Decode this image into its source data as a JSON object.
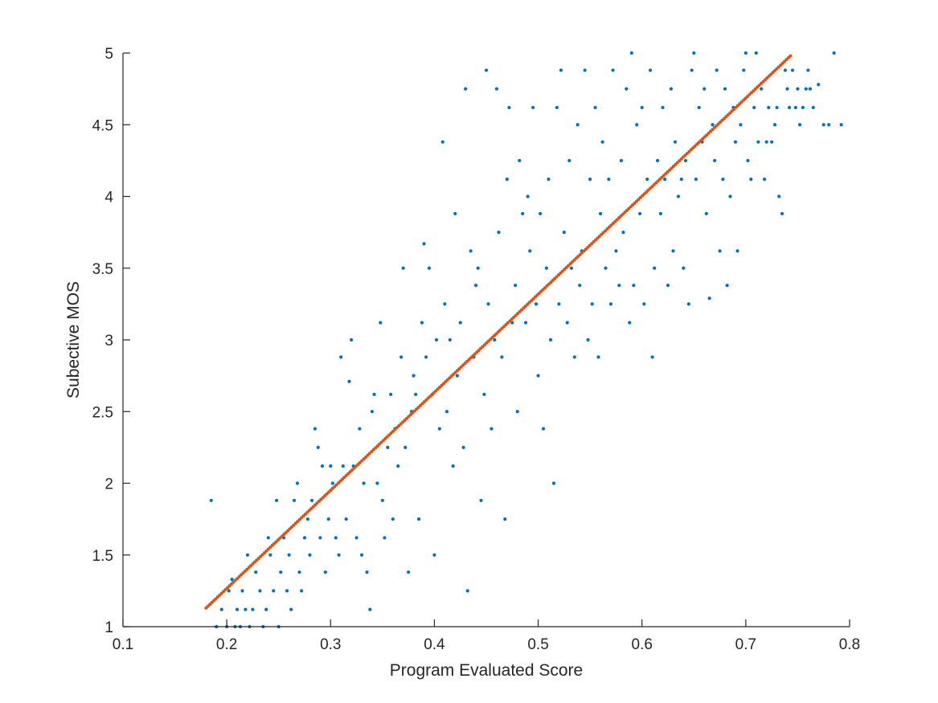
{
  "chart_data": {
    "type": "scatter",
    "title": "",
    "xlabel": "Program Evaluated Score",
    "ylabel": "Subective MOS",
    "xlim": [
      0.1,
      0.8
    ],
    "ylim": [
      1,
      5
    ],
    "grid": false,
    "x_ticks": [
      0.1,
      0.2,
      0.3,
      0.4,
      0.5,
      0.6,
      0.7,
      0.8
    ],
    "x_tick_labels": [
      "0.1",
      "0.2",
      "0.3",
      "0.4",
      "0.5",
      "0.6",
      "0.7",
      "0.8"
    ],
    "y_ticks": [
      1,
      1.5,
      2,
      2.5,
      3,
      3.5,
      4,
      4.5,
      5
    ],
    "y_tick_labels": [
      "1",
      "1.5",
      "2",
      "2.5",
      "3",
      "3.5",
      "4",
      "4.5",
      "5"
    ],
    "colors": {
      "observed": "#0072BD",
      "fit": "#D95319",
      "axis": "#262626"
    },
    "series": [
      {
        "marker": "dot",
        "points": [
          [
            0.185,
            1.88
          ],
          [
            0.19,
            1.0
          ],
          [
            0.195,
            1.12
          ],
          [
            0.2,
            1.0
          ],
          [
            0.202,
            1.25
          ],
          [
            0.205,
            1.33
          ],
          [
            0.208,
            1.0
          ],
          [
            0.21,
            1.12
          ],
          [
            0.213,
            1.0
          ],
          [
            0.215,
            1.25
          ],
          [
            0.218,
            1.12
          ],
          [
            0.22,
            1.5
          ],
          [
            0.222,
            1.0
          ],
          [
            0.225,
            1.12
          ],
          [
            0.228,
            1.38
          ],
          [
            0.232,
            1.25
          ],
          [
            0.235,
            1.0
          ],
          [
            0.238,
            1.12
          ],
          [
            0.24,
            1.62
          ],
          [
            0.242,
            1.5
          ],
          [
            0.245,
            1.25
          ],
          [
            0.248,
            1.88
          ],
          [
            0.25,
            1.0
          ],
          [
            0.252,
            1.38
          ],
          [
            0.255,
            1.62
          ],
          [
            0.258,
            1.25
          ],
          [
            0.26,
            1.5
          ],
          [
            0.262,
            1.12
          ],
          [
            0.265,
            1.88
          ],
          [
            0.268,
            2.0
          ],
          [
            0.27,
            1.38
          ],
          [
            0.272,
            1.25
          ],
          [
            0.275,
            1.62
          ],
          [
            0.278,
            1.75
          ],
          [
            0.28,
            1.5
          ],
          [
            0.282,
            1.88
          ],
          [
            0.285,
            2.38
          ],
          [
            0.288,
            2.25
          ],
          [
            0.29,
            1.62
          ],
          [
            0.292,
            2.12
          ],
          [
            0.295,
            1.38
          ],
          [
            0.298,
            1.75
          ],
          [
            0.3,
            2.12
          ],
          [
            0.302,
            2.0
          ],
          [
            0.305,
            1.62
          ],
          [
            0.308,
            1.5
          ],
          [
            0.31,
            2.88
          ],
          [
            0.312,
            2.12
          ],
          [
            0.315,
            1.75
          ],
          [
            0.318,
            2.71
          ],
          [
            0.32,
            3.0
          ],
          [
            0.322,
            2.12
          ],
          [
            0.325,
            1.62
          ],
          [
            0.328,
            2.38
          ],
          [
            0.33,
            1.5
          ],
          [
            0.332,
            2.0
          ],
          [
            0.335,
            1.38
          ],
          [
            0.338,
            1.12
          ],
          [
            0.34,
            2.5
          ],
          [
            0.342,
            2.62
          ],
          [
            0.345,
            2.0
          ],
          [
            0.348,
            3.12
          ],
          [
            0.35,
            1.88
          ],
          [
            0.352,
            1.62
          ],
          [
            0.355,
            2.25
          ],
          [
            0.358,
            2.62
          ],
          [
            0.36,
            1.75
          ],
          [
            0.362,
            2.38
          ],
          [
            0.365,
            2.12
          ],
          [
            0.368,
            2.88
          ],
          [
            0.37,
            3.5
          ],
          [
            0.372,
            2.25
          ],
          [
            0.375,
            1.38
          ],
          [
            0.378,
            2.5
          ],
          [
            0.38,
            2.75
          ],
          [
            0.382,
            2.62
          ],
          [
            0.385,
            1.75
          ],
          [
            0.388,
            3.12
          ],
          [
            0.39,
            3.67
          ],
          [
            0.392,
            2.88
          ],
          [
            0.395,
            3.5
          ],
          [
            0.398,
            2.62
          ],
          [
            0.4,
            1.5
          ],
          [
            0.402,
            3.0
          ],
          [
            0.405,
            2.38
          ],
          [
            0.408,
            4.38
          ],
          [
            0.41,
            3.25
          ],
          [
            0.412,
            2.5
          ],
          [
            0.415,
            3.0
          ],
          [
            0.418,
            2.12
          ],
          [
            0.42,
            3.88
          ],
          [
            0.422,
            2.75
          ],
          [
            0.425,
            3.12
          ],
          [
            0.428,
            2.25
          ],
          [
            0.43,
            4.75
          ],
          [
            0.432,
            1.25
          ],
          [
            0.435,
            3.62
          ],
          [
            0.438,
            2.88
          ],
          [
            0.44,
            3.38
          ],
          [
            0.442,
            3.5
          ],
          [
            0.445,
            1.88
          ],
          [
            0.448,
            2.62
          ],
          [
            0.45,
            4.88
          ],
          [
            0.452,
            3.25
          ],
          [
            0.455,
            2.38
          ],
          [
            0.458,
            3.0
          ],
          [
            0.46,
            4.75
          ],
          [
            0.462,
            3.75
          ],
          [
            0.465,
            2.88
          ],
          [
            0.468,
            1.75
          ],
          [
            0.47,
            4.12
          ],
          [
            0.472,
            4.62
          ],
          [
            0.475,
            3.12
          ],
          [
            0.478,
            3.38
          ],
          [
            0.48,
            2.5
          ],
          [
            0.482,
            4.25
          ],
          [
            0.485,
            3.88
          ],
          [
            0.488,
            3.12
          ],
          [
            0.49,
            4.0
          ],
          [
            0.492,
            3.62
          ],
          [
            0.495,
            4.62
          ],
          [
            0.498,
            3.25
          ],
          [
            0.5,
            2.75
          ],
          [
            0.502,
            3.88
          ],
          [
            0.505,
            2.38
          ],
          [
            0.508,
            3.5
          ],
          [
            0.51,
            4.12
          ],
          [
            0.512,
            3.0
          ],
          [
            0.515,
            2.0
          ],
          [
            0.518,
            4.62
          ],
          [
            0.52,
            3.25
          ],
          [
            0.522,
            4.88
          ],
          [
            0.525,
            3.75
          ],
          [
            0.528,
            3.12
          ],
          [
            0.53,
            4.25
          ],
          [
            0.532,
            3.5
          ],
          [
            0.535,
            2.88
          ],
          [
            0.538,
            4.5
          ],
          [
            0.54,
            3.38
          ],
          [
            0.542,
            3.62
          ],
          [
            0.545,
            4.88
          ],
          [
            0.548,
            3.0
          ],
          [
            0.55,
            4.12
          ],
          [
            0.552,
            3.25
          ],
          [
            0.555,
            4.62
          ],
          [
            0.558,
            2.88
          ],
          [
            0.56,
            3.88
          ],
          [
            0.562,
            4.38
          ],
          [
            0.565,
            3.5
          ],
          [
            0.568,
            4.12
          ],
          [
            0.57,
            3.25
          ],
          [
            0.572,
            4.88
          ],
          [
            0.575,
            3.62
          ],
          [
            0.578,
            3.38
          ],
          [
            0.58,
            4.25
          ],
          [
            0.582,
            3.75
          ],
          [
            0.585,
            4.75
          ],
          [
            0.588,
            3.12
          ],
          [
            0.59,
            5.0
          ],
          [
            0.592,
            3.38
          ],
          [
            0.595,
            4.5
          ],
          [
            0.598,
            3.88
          ],
          [
            0.6,
            4.62
          ],
          [
            0.602,
            3.25
          ],
          [
            0.605,
            4.12
          ],
          [
            0.608,
            4.88
          ],
          [
            0.61,
            2.88
          ],
          [
            0.612,
            3.5
          ],
          [
            0.615,
            4.25
          ],
          [
            0.618,
            3.88
          ],
          [
            0.62,
            4.62
          ],
          [
            0.622,
            4.12
          ],
          [
            0.625,
            3.38
          ],
          [
            0.628,
            4.75
          ],
          [
            0.63,
            3.62
          ],
          [
            0.632,
            4.38
          ],
          [
            0.635,
            4.0
          ],
          [
            0.638,
            4.12
          ],
          [
            0.64,
            3.5
          ],
          [
            0.642,
            4.25
          ],
          [
            0.645,
            3.25
          ],
          [
            0.648,
            4.88
          ],
          [
            0.65,
            5.0
          ],
          [
            0.652,
            4.12
          ],
          [
            0.655,
            4.62
          ],
          [
            0.658,
            4.38
          ],
          [
            0.66,
            4.75
          ],
          [
            0.662,
            3.88
          ],
          [
            0.665,
            3.29
          ],
          [
            0.668,
            4.5
          ],
          [
            0.67,
            4.25
          ],
          [
            0.672,
            4.88
          ],
          [
            0.675,
            3.62
          ],
          [
            0.678,
            4.12
          ],
          [
            0.68,
            4.75
          ],
          [
            0.682,
            3.38
          ],
          [
            0.685,
            4.0
          ],
          [
            0.688,
            4.62
          ],
          [
            0.69,
            4.38
          ],
          [
            0.692,
            3.62
          ],
          [
            0.695,
            4.5
          ],
          [
            0.698,
            4.88
          ],
          [
            0.7,
            5.0
          ],
          [
            0.702,
            4.25
          ],
          [
            0.705,
            4.12
          ],
          [
            0.708,
            4.62
          ],
          [
            0.71,
            5.0
          ],
          [
            0.712,
            4.38
          ],
          [
            0.715,
            4.75
          ],
          [
            0.718,
            4.12
          ],
          [
            0.72,
            4.38
          ],
          [
            0.722,
            4.62
          ],
          [
            0.725,
            4.38
          ],
          [
            0.728,
            4.5
          ],
          [
            0.73,
            4.62
          ],
          [
            0.732,
            4.0
          ],
          [
            0.735,
            3.88
          ],
          [
            0.738,
            4.88
          ],
          [
            0.74,
            4.75
          ],
          [
            0.742,
            4.62
          ],
          [
            0.745,
            4.88
          ],
          [
            0.748,
            4.62
          ],
          [
            0.75,
            4.75
          ],
          [
            0.752,
            4.5
          ],
          [
            0.755,
            4.62
          ],
          [
            0.758,
            4.75
          ],
          [
            0.76,
            4.88
          ],
          [
            0.762,
            4.75
          ],
          [
            0.765,
            4.62
          ],
          [
            0.77,
            4.78
          ],
          [
            0.775,
            4.5
          ],
          [
            0.78,
            4.5
          ],
          [
            0.785,
            5.0
          ],
          [
            0.792,
            4.5
          ]
        ]
      },
      {
        "marker": "line-dots",
        "x_start": 0.18,
        "x_end": 0.743,
        "y_start": 1.13,
        "y_end": 4.98
      }
    ]
  }
}
